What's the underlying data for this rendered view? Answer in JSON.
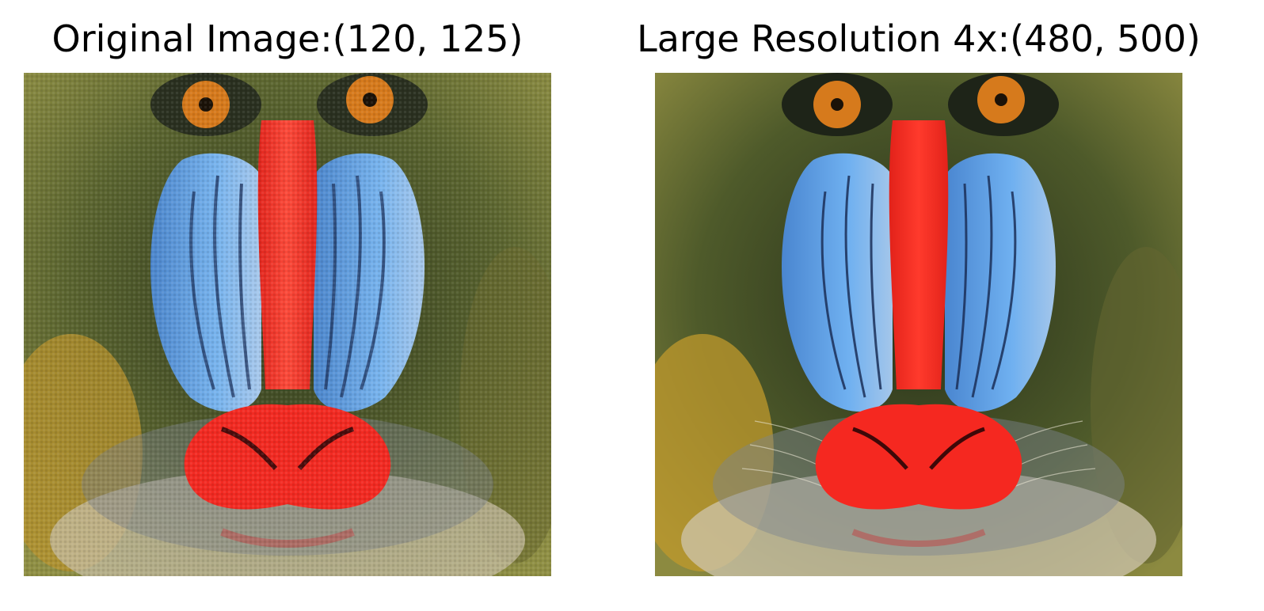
{
  "panels": [
    {
      "title": "Original Image:(120, 125)",
      "image": "mandrill-face-low-resolution"
    },
    {
      "title": "Large Resolution 4x:(480, 500)",
      "image": "mandrill-face-high-resolution"
    }
  ],
  "colors": {
    "fur_dark": "#3e4a24",
    "fur_light": "#9a9a4a",
    "cheek_blue": "#6aaae8",
    "nose_red": "#f03028",
    "eye_orange": "#d67a1c",
    "beard": "#c8c0a8"
  }
}
